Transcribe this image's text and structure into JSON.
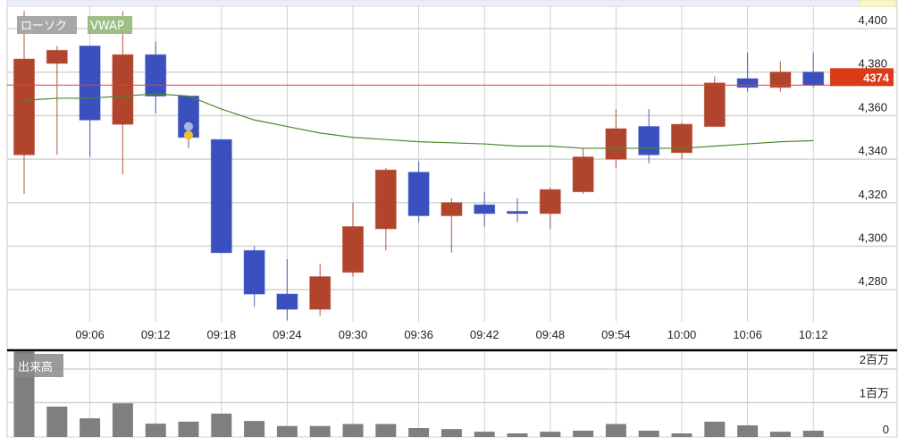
{
  "chart_data": [
    {
      "type": "candlestick",
      "title": "",
      "legend": [
        "ローソク",
        "VWAP"
      ],
      "legend_placement": "top-left",
      "x": [
        "09:00",
        "09:03",
        "09:06",
        "09:09",
        "09:12",
        "09:15",
        "09:18",
        "09:21",
        "09:24",
        "09:27",
        "09:30",
        "09:33",
        "09:36",
        "09:39",
        "09:42",
        "09:45",
        "09:48",
        "09:51",
        "09:54",
        "09:57",
        "10:00",
        "10:03",
        "10:06",
        "10:09",
        "10:12"
      ],
      "x_tick_labels": [
        "09:06",
        "09:12",
        "09:18",
        "09:24",
        "09:30",
        "09:36",
        "09:42",
        "09:48",
        "09:54",
        "10:00",
        "10:06",
        "10:12"
      ],
      "open": [
        4342,
        4384,
        4392,
        4356,
        4388,
        4369,
        4349,
        4298,
        4278,
        4271,
        4288,
        4308,
        4334,
        4314,
        4319,
        4316,
        4315,
        4325,
        4340,
        4355,
        4343,
        4355,
        4377,
        4373,
        4380
      ],
      "high": [
        4408,
        4392,
        4392,
        4408,
        4394,
        4369,
        4349,
        4300,
        4294,
        4292,
        4320,
        4336,
        4339,
        4322,
        4325,
        4322,
        4327,
        4345,
        4363,
        4363,
        4357,
        4378,
        4389,
        4385,
        4389
      ],
      "low": [
        4324,
        4342,
        4341,
        4333,
        4361,
        4345,
        4297,
        4272,
        4266,
        4268,
        4286,
        4298,
        4311,
        4297,
        4309,
        4311,
        4308,
        4324,
        4336,
        4338,
        4340,
        4355,
        4371,
        4371,
        4373
      ],
      "close": [
        4386,
        4390,
        4358,
        4388,
        4369,
        4350,
        4297,
        4278,
        4271,
        4286,
        4309,
        4335,
        4314,
        4320,
        4315,
        4315,
        4326,
        4341,
        4354,
        4342,
        4356,
        4375,
        4373,
        4380,
        4374
      ],
      "vwap": [
        4367,
        4368,
        4368,
        4369,
        4370,
        4369,
        4363,
        4358,
        4355,
        4352,
        4350,
        4349,
        4348,
        4347.5,
        4347,
        4346,
        4346,
        4345,
        4345,
        4345,
        4345,
        4346,
        4347,
        4348,
        4348.5
      ],
      "markers": [
        {
          "x": "09:15",
          "price": 4355,
          "color": "#a8b8dc"
        },
        {
          "x": "09:15",
          "price": 4351,
          "color": "#f0c030"
        }
      ],
      "last_price": 4374,
      "last_price_label": "4374",
      "ylim": [
        4262,
        4412
      ],
      "y_ticks": [
        4280,
        4300,
        4320,
        4340,
        4360,
        4380,
        4400
      ],
      "y_tick_labels": [
        "4,280",
        "4,300",
        "4,320",
        "4,340",
        "4,360",
        "4,380",
        "4,400"
      ],
      "grid": true,
      "colors": {
        "up": "#b0442c",
        "down": "#3a50be",
        "vwap": "#4a8a2a",
        "last_line": "#e8442a",
        "last_label": "#dc3b1a",
        "vwap_legend": "#9dbf86",
        "candle_legend": "#a3a3a3"
      }
    },
    {
      "type": "bar",
      "legend": [
        "出来高"
      ],
      "x": [
        "09:00",
        "09:03",
        "09:06",
        "09:09",
        "09:12",
        "09:15",
        "09:18",
        "09:21",
        "09:24",
        "09:27",
        "09:30",
        "09:33",
        "09:36",
        "09:39",
        "09:42",
        "09:45",
        "09:48",
        "09:51",
        "09:54",
        "09:57",
        "10:00",
        "10:03",
        "10:06",
        "10:09",
        "10:12"
      ],
      "values_millions": [
        2.6,
        0.88,
        0.53,
        0.98,
        0.37,
        0.43,
        0.67,
        0.45,
        0.3,
        0.3,
        0.36,
        0.36,
        0.24,
        0.21,
        0.13,
        0.08,
        0.13,
        0.16,
        0.36,
        0.16,
        0.08,
        0.43,
        0.32,
        0.13,
        0.16
      ],
      "ylim": [
        0,
        2.55
      ],
      "y_ticks": [
        0,
        1,
        2
      ],
      "y_tick_labels": [
        "0",
        "1百万",
        "2百万"
      ],
      "colors": {
        "bar": "#7f7f7f"
      }
    }
  ]
}
